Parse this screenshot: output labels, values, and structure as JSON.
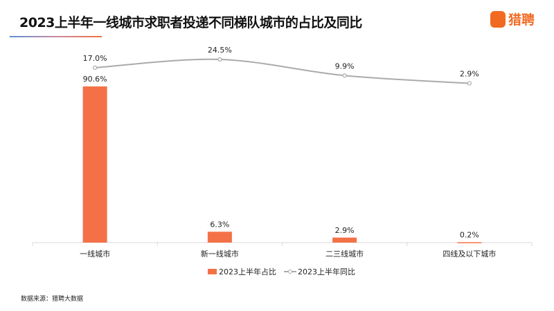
{
  "title": "2023上半年一线城市求职者投递不同梯队城市的占比及同比",
  "logo": {
    "text": "猎聘",
    "icon_text": "猎聘"
  },
  "source": "数据来源：猎聘大数据",
  "colors": {
    "bar": "#f47148",
    "line": "#aaaaaa",
    "accent": "#f26a21"
  },
  "chart_data": {
    "type": "bar+line",
    "categories": [
      "一线城市",
      "新一线城市",
      "二三线城市",
      "四线及以下城市"
    ],
    "series": [
      {
        "name": "2023上半年占比",
        "type": "bar",
        "values": [
          90.6,
          6.3,
          2.9,
          0.2
        ],
        "labels": [
          "90.6%",
          "6.3%",
          "2.9%",
          "0.2%"
        ]
      },
      {
        "name": "2023上半年同比",
        "type": "line",
        "smooth": true,
        "values": [
          17.0,
          24.5,
          9.9,
          2.9
        ],
        "labels": [
          "17.0%",
          "24.5%",
          "9.9%",
          "2.9%"
        ]
      }
    ],
    "legend": "bottom",
    "grid": false
  }
}
